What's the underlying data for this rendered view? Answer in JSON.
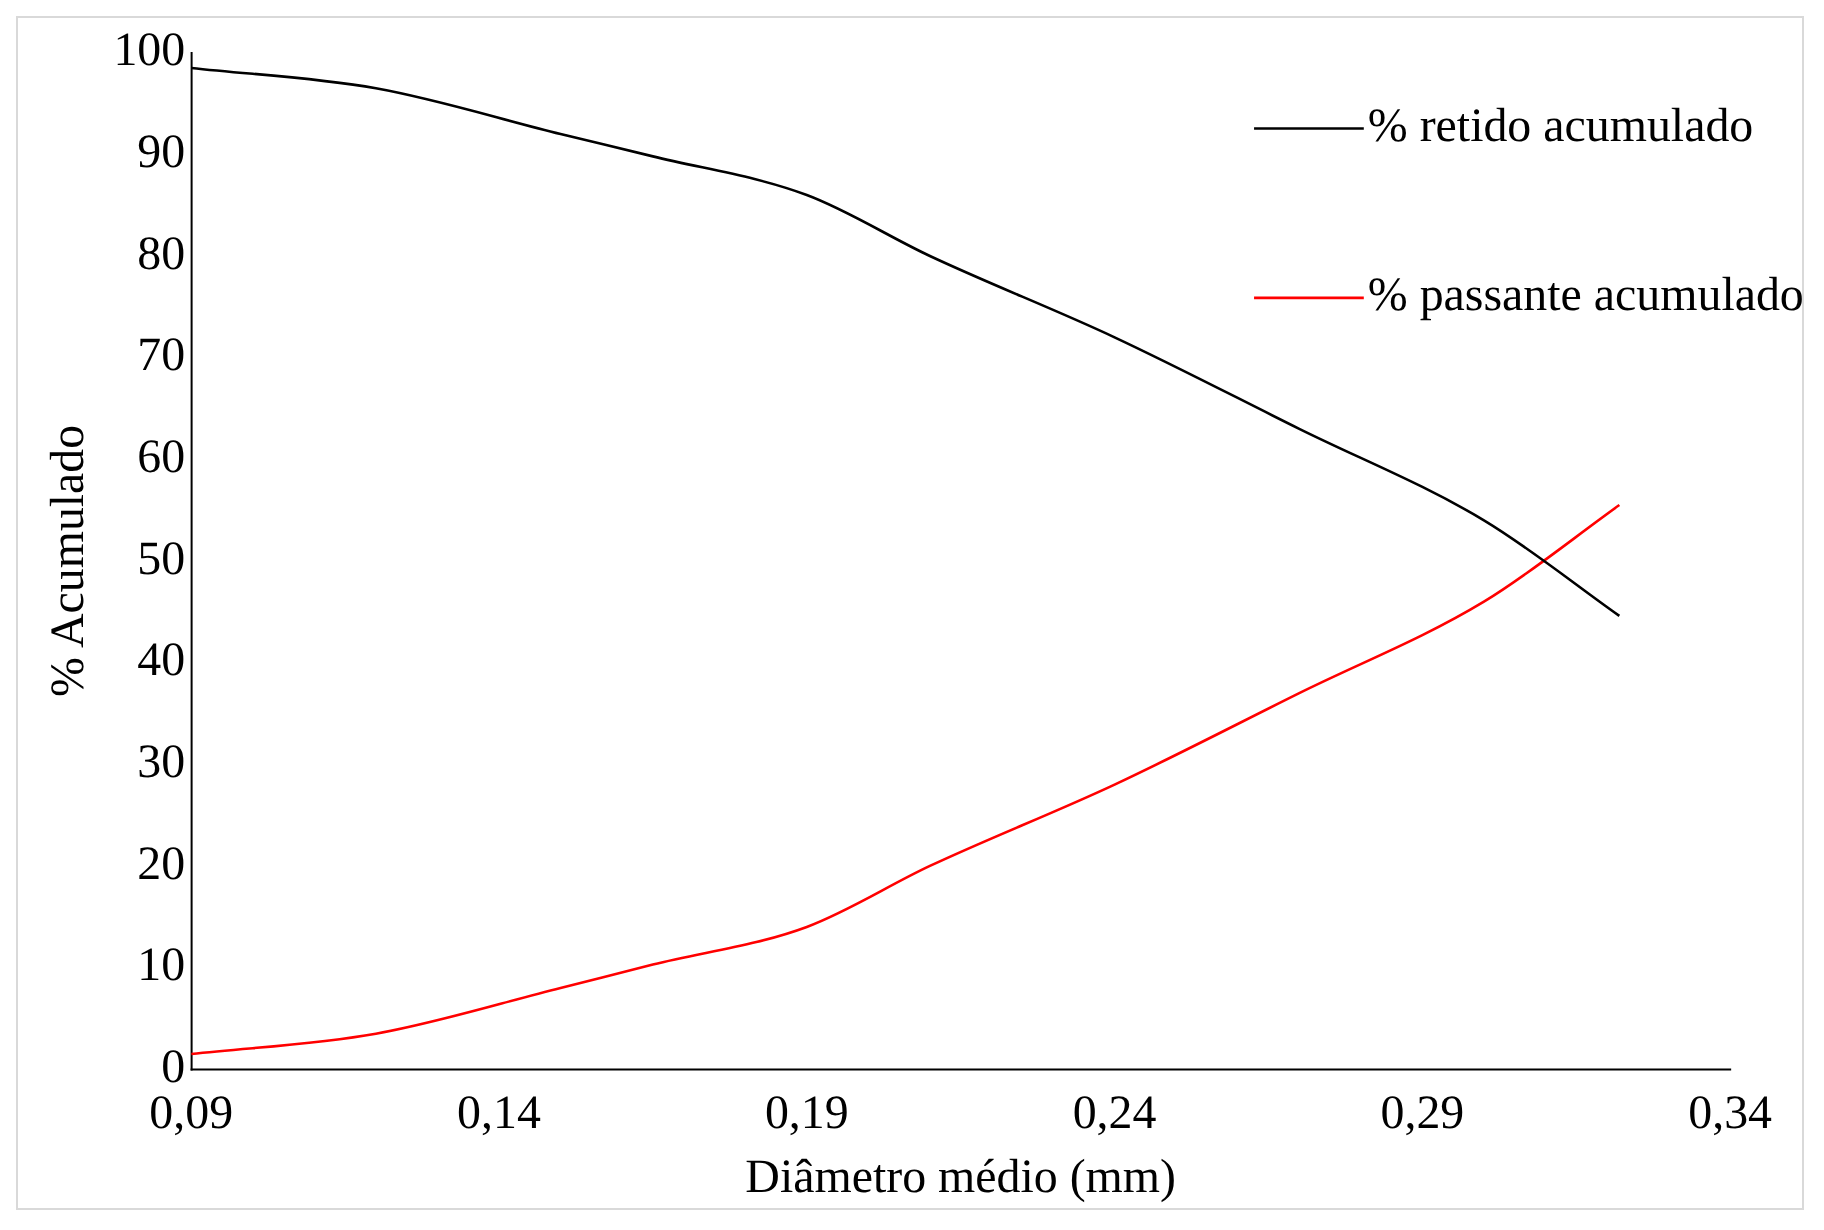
{
  "chart_data": {
    "type": "line",
    "xlabel": "Diâmetro médio (mm)",
    "ylabel": "% Acumulado",
    "xlim": [
      0.09,
      0.34
    ],
    "xticks": [
      {
        "value": 0.09,
        "label": "0,09"
      },
      {
        "value": 0.14,
        "label": "0,14"
      },
      {
        "value": 0.19,
        "label": "0,19"
      },
      {
        "value": 0.24,
        "label": "0,24"
      },
      {
        "value": 0.29,
        "label": "0,29"
      },
      {
        "value": 0.34,
        "label": "0,34"
      }
    ],
    "ylim": [
      0,
      100
    ],
    "yticks": [
      0,
      10,
      20,
      30,
      40,
      50,
      60,
      70,
      80,
      90,
      100
    ],
    "x": [
      0.09,
      0.12,
      0.15,
      0.165,
      0.19,
      0.21,
      0.24,
      0.27,
      0.3,
      0.322
    ],
    "series": [
      {
        "name": "% retido acumulado",
        "color": "#000000",
        "values": [
          98.5,
          96.5,
          92,
          89.8,
          86,
          80,
          72,
          63,
          54,
          44.6
        ]
      },
      {
        "name": "% passante acumulado",
        "color": "#ff0000",
        "values": [
          1.5,
          3.5,
          8,
          10.3,
          14,
          20,
          28,
          37,
          46,
          55.5
        ]
      }
    ],
    "grid": false,
    "legend": "top right",
    "marker": "none",
    "line_style": "solid"
  }
}
